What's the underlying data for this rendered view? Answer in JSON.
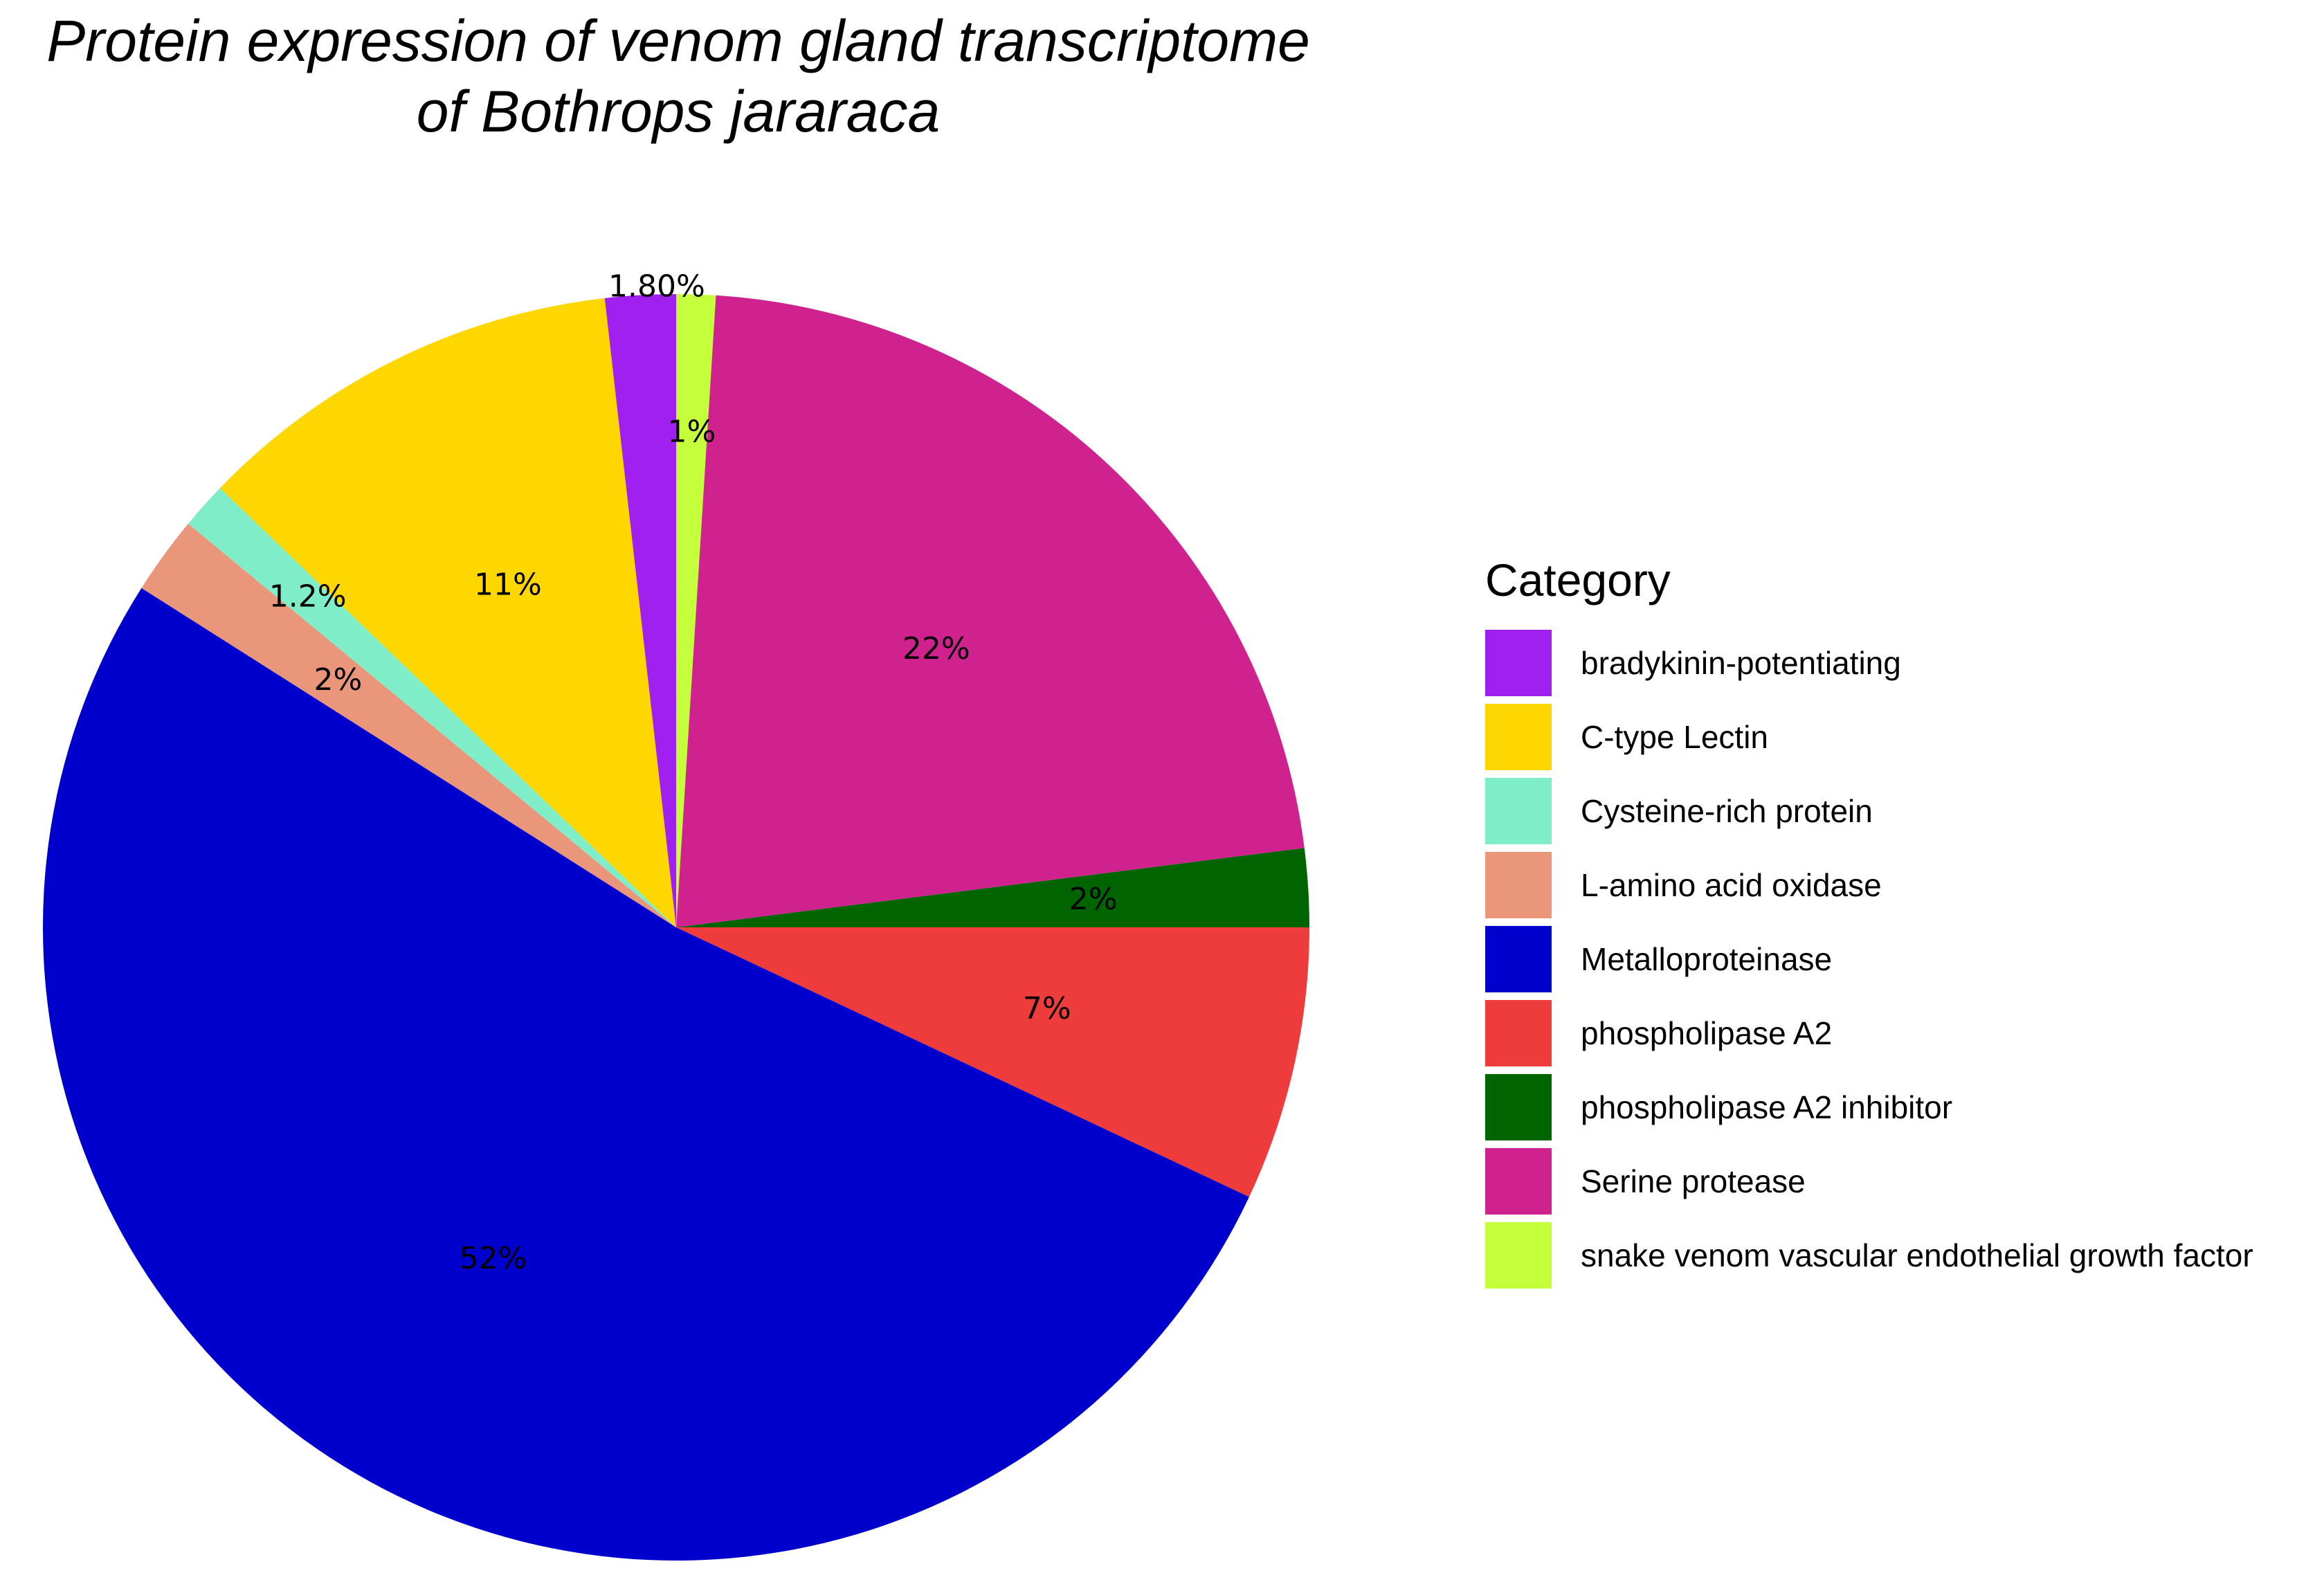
{
  "chart_data": {
    "type": "pie",
    "title_lines": [
      "Protein expression of venom gland transcriptome",
      "of Bothrops jararaca"
    ],
    "legend_title": "Category",
    "legend_position": "right",
    "slices": [
      {
        "name": "snake venom vascular endothelial growth factor",
        "value": 1.0,
        "label": "1%",
        "color": "#C5FF3B"
      },
      {
        "name": "Serine protease",
        "value": 22.0,
        "label": "22%",
        "color": "#D0228F"
      },
      {
        "name": "phospholipase A2 inhibitor",
        "value": 2.0,
        "label": "2%",
        "color": "#006400"
      },
      {
        "name": "phospholipase A2",
        "value": 7.0,
        "label": "7%",
        "color": "#EE3B3B"
      },
      {
        "name": "Metalloproteinase",
        "value": 52.0,
        "label": "52%",
        "color": "#0000CD"
      },
      {
        "name": "L-amino acid oxidase",
        "value": 2.0,
        "label": "2%",
        "color": "#E9967A"
      },
      {
        "name": "Cysteine-rich protein",
        "value": 1.2,
        "label": "1.2%",
        "color": "#7FEDC8"
      },
      {
        "name": "C-type Lectin",
        "value": 11.0,
        "label": "11%",
        "color": "#FFD700"
      },
      {
        "name": "bradykinin-potentiating",
        "value": 1.8,
        "label": "1.80%",
        "color": "#A020F0"
      }
    ],
    "legend_order": [
      "bradykinin-potentiating",
      "C-type Lectin",
      "Cysteine-rich protein",
      "L-amino acid oxidase",
      "Metalloproteinase",
      "phospholipase A2",
      "phospholipase A2 inhibitor",
      "Serine protease",
      "snake venom vascular endothelial growth factor"
    ]
  }
}
